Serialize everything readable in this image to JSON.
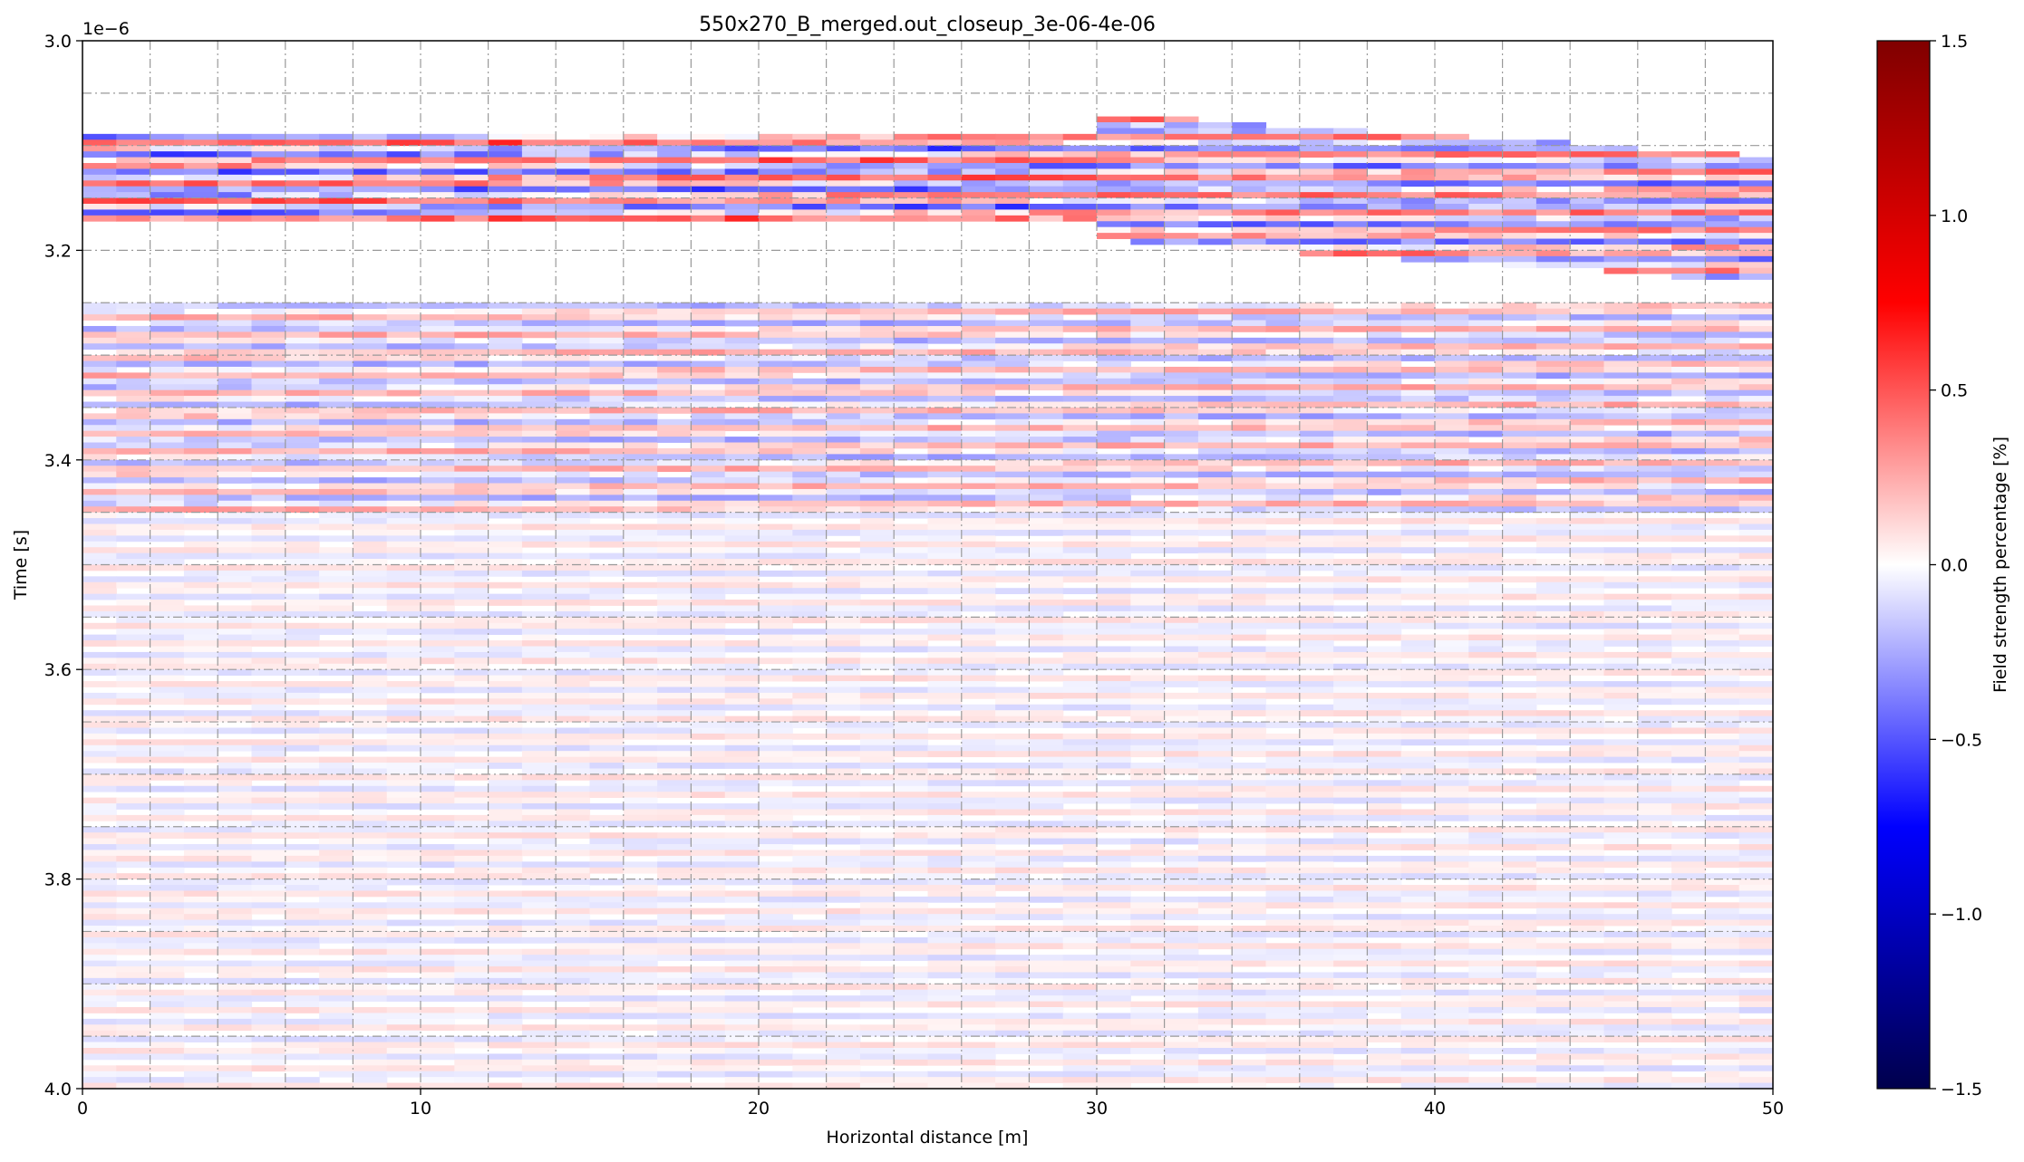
{
  "chart_data": {
    "type": "heatmap",
    "title": "550x270_B_merged.out_closeup_3e-06-4e-06",
    "xlabel": "Horizontal distance [m]",
    "ylabel": "Time [s]",
    "y_offset_label": "1e−6",
    "xlim": [
      0,
      50
    ],
    "ylim": [
      4.0,
      3.0
    ],
    "y_axis_inverted": true,
    "x_ticks": [
      0,
      10,
      20,
      30,
      40,
      50
    ],
    "x_tick_labels": [
      "0",
      "10",
      "20",
      "30",
      "40",
      "50"
    ],
    "y_ticks": [
      3.0,
      3.2,
      3.4,
      3.6,
      3.8,
      4.0
    ],
    "y_tick_labels": [
      "3.0",
      "3.2",
      "3.4",
      "3.6",
      "3.8",
      "4.0"
    ],
    "grid_x_every": 2,
    "grid_y_every": 0.05,
    "grid": "dash-dot, gray",
    "colormap": "seismic",
    "colorbar": {
      "label": "Field strength percentage [%]",
      "range": [
        -1.5,
        1.5
      ],
      "ticks": [
        1.5,
        1.0,
        0.5,
        0.0,
        -0.5,
        -1.0,
        -1.5
      ],
      "tick_labels": [
        "1.5",
        "1.0",
        "0.5",
        "0.0",
        "−0.5",
        "−1.0",
        "−1.5"
      ],
      "placement": "right"
    },
    "features": [
      {
        "description": "strong banded reflection",
        "x_range": [
          0,
          30
        ],
        "time_range": [
          3.09,
          3.17
        ],
        "amplitude": 0.6
      },
      {
        "description": "dipping reflection",
        "x_range": [
          30,
          50
        ],
        "time_range": [
          3.05,
          3.25
        ],
        "amplitude": 0.5
      },
      {
        "description": "weak banding",
        "x_range": [
          0,
          50
        ],
        "time_range": [
          3.25,
          3.45
        ],
        "amplitude": 0.3
      },
      {
        "description": "low-amplitude noise",
        "x_range": [
          0,
          50
        ],
        "time_range": [
          3.45,
          4.0
        ],
        "amplitude": 0.12
      }
    ]
  }
}
